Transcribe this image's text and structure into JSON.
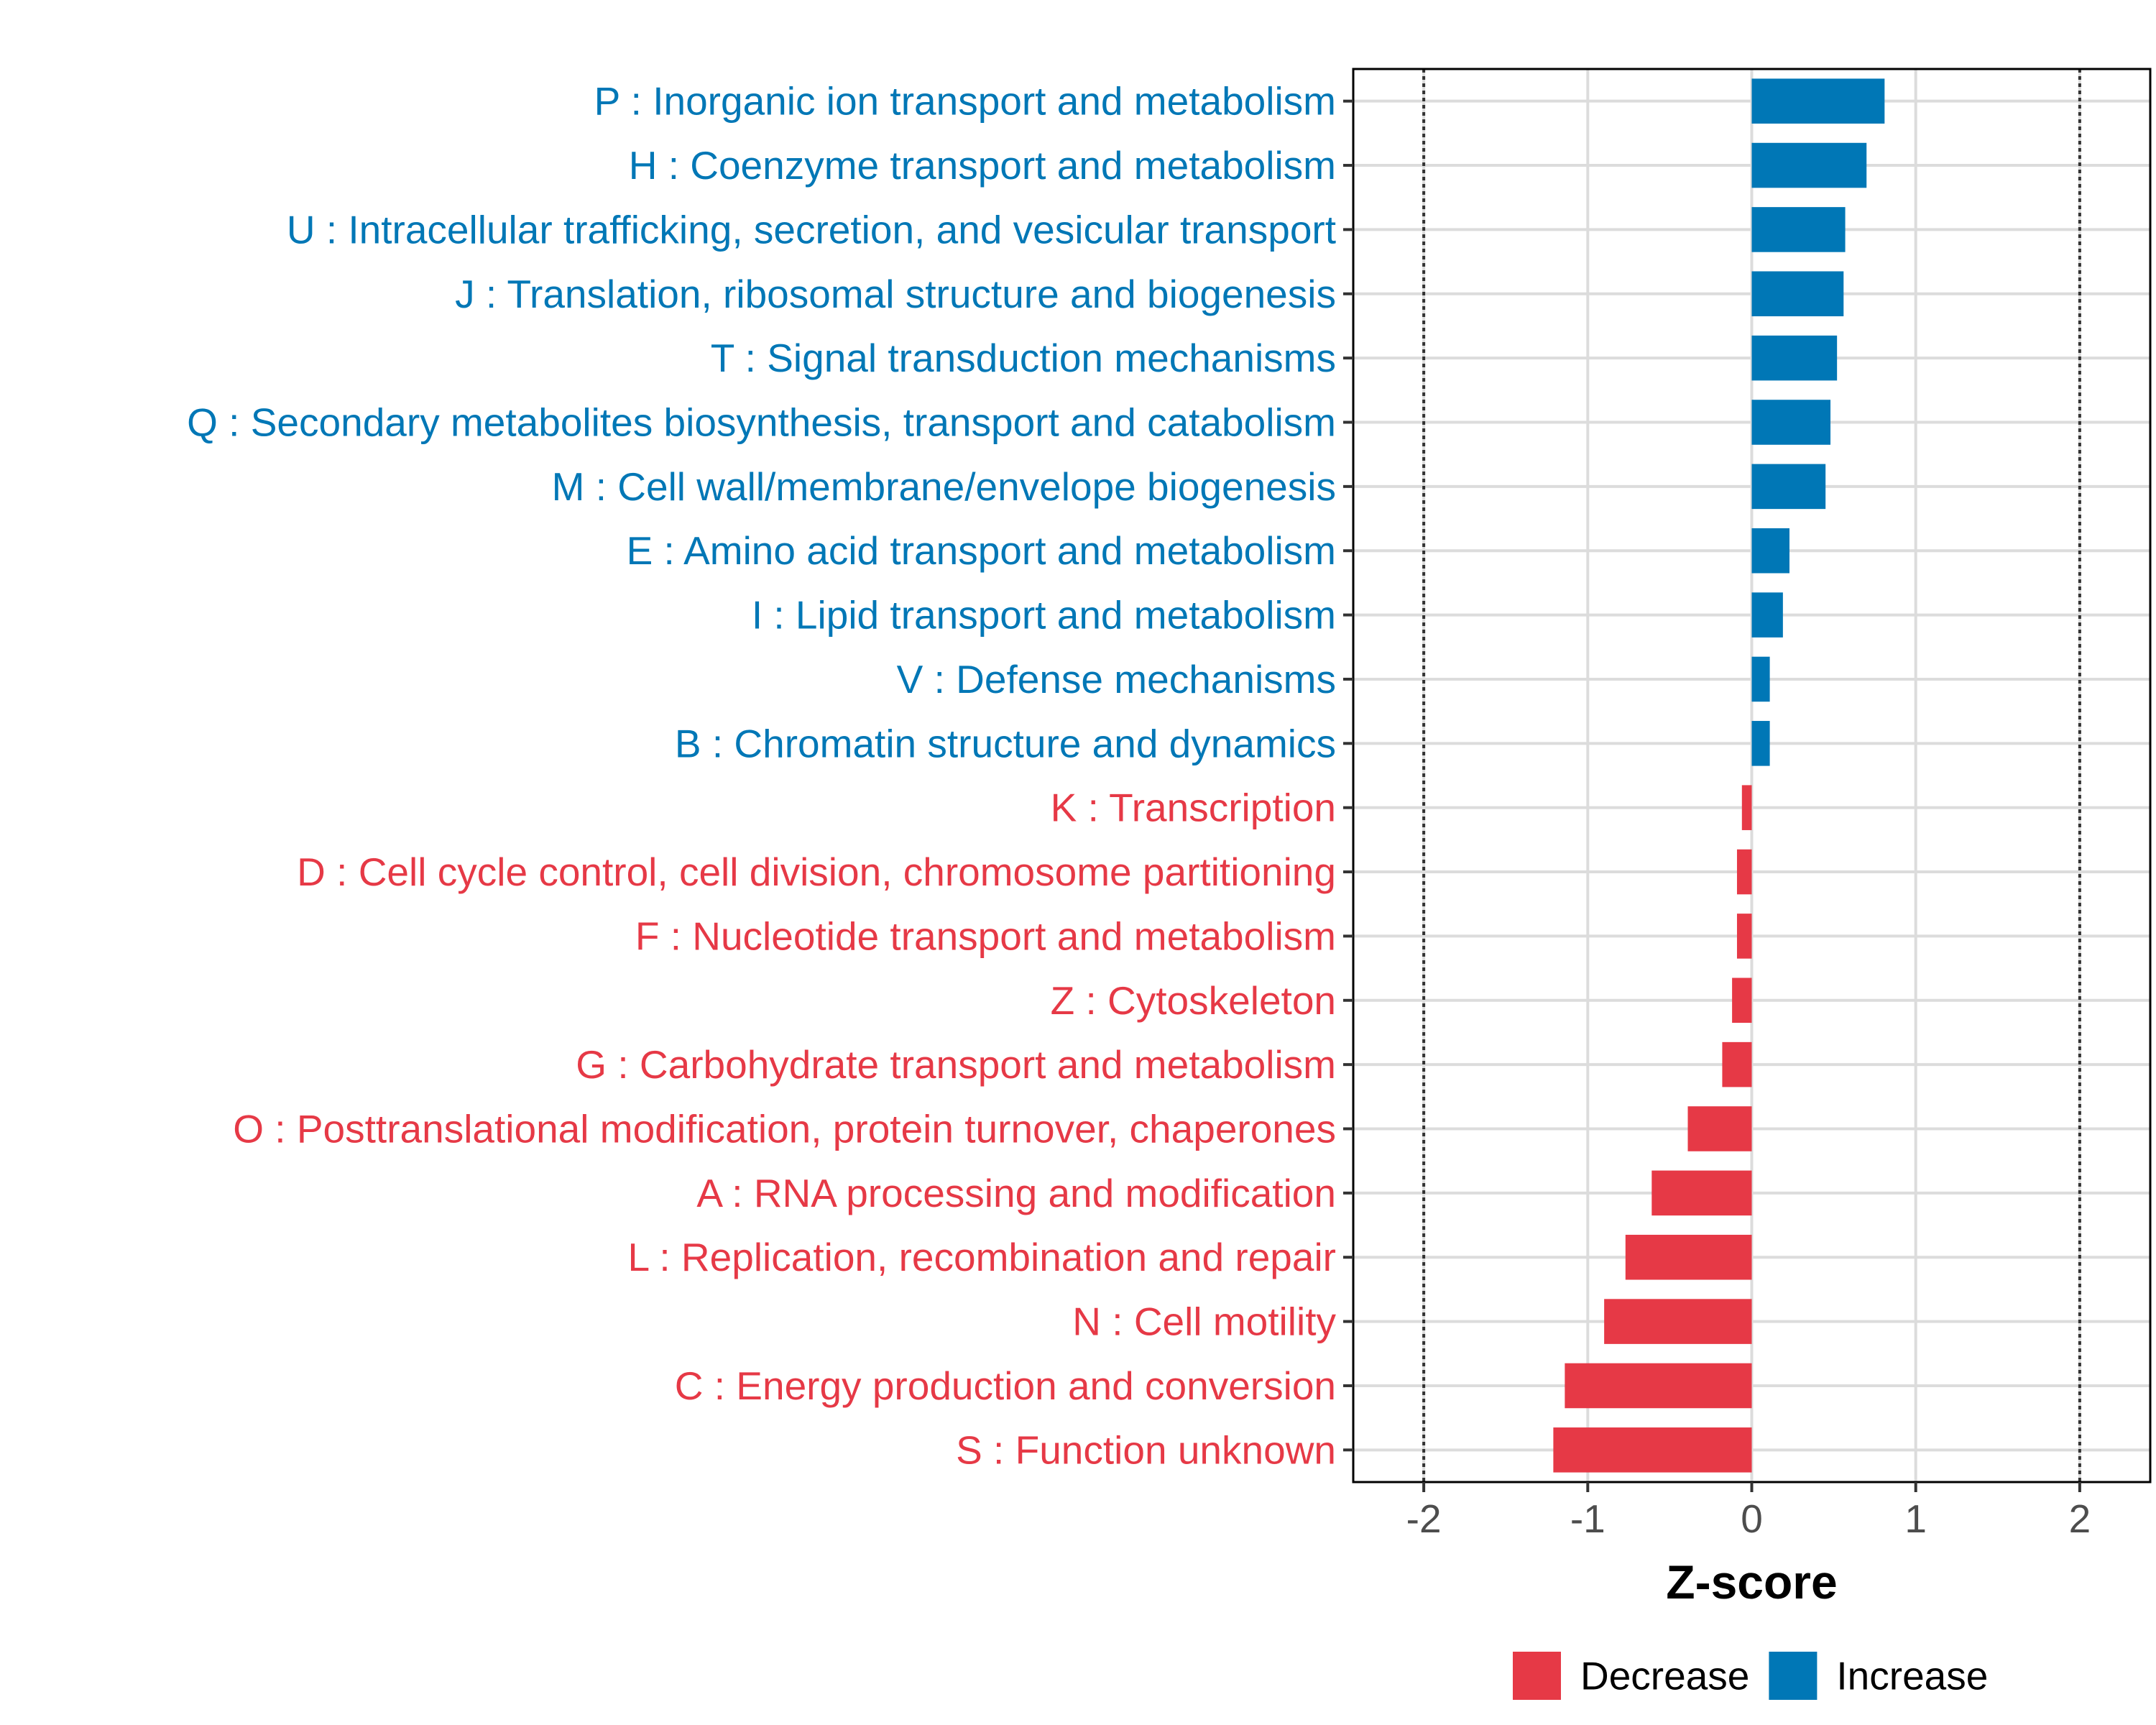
{
  "chart_data": {
    "type": "bar",
    "orientation": "horizontal",
    "xlabel": "Z-score",
    "ylabel": "",
    "xlim": [
      -2.43,
      2.43
    ],
    "xticks": [
      -2,
      -1,
      0,
      1,
      2
    ],
    "tick_labels": [
      "-2",
      "-1",
      "0",
      "1",
      "2"
    ],
    "reference_lines": [
      -2,
      2
    ],
    "grid": true,
    "legend_position": "bottom",
    "categories": [
      "P : Inorganic ion transport and metabolism",
      "H : Coenzyme transport and metabolism",
      "U : Intracellular trafficking, secretion, and vesicular transport",
      "J : Translation, ribosomal structure and biogenesis",
      "T : Signal transduction mechanisms",
      "Q : Secondary metabolites biosynthesis, transport and catabolism",
      "M : Cell wall/membrane/envelope biogenesis",
      "E : Amino acid transport and metabolism",
      "I : Lipid transport and metabolism",
      "V : Defense mechanisms",
      "B : Chromatin structure and dynamics",
      "K : Transcription",
      "D : Cell cycle control, cell division, chromosome partitioning",
      "F : Nucleotide transport and metabolism",
      "Z : Cytoskeleton",
      "G : Carbohydrate transport and metabolism",
      "O : Posttranslational modification, protein turnover, chaperones",
      "A : RNA processing and modification",
      "L : Replication, recombination and repair",
      "N : Cell motility",
      "C : Energy production and conversion",
      "S : Function unknown"
    ],
    "values": [
      0.81,
      0.7,
      0.57,
      0.56,
      0.52,
      0.48,
      0.45,
      0.23,
      0.19,
      0.11,
      0.11,
      -0.06,
      -0.09,
      -0.09,
      -0.12,
      -0.18,
      -0.39,
      -0.61,
      -0.77,
      -0.9,
      -1.14,
      -1.21
    ],
    "groups": [
      "Increase",
      "Increase",
      "Increase",
      "Increase",
      "Increase",
      "Increase",
      "Increase",
      "Increase",
      "Increase",
      "Increase",
      "Increase",
      "Decrease",
      "Decrease",
      "Decrease",
      "Decrease",
      "Decrease",
      "Decrease",
      "Decrease",
      "Decrease",
      "Decrease",
      "Decrease",
      "Decrease"
    ],
    "legend": [
      {
        "name": "Decrease",
        "color": "#E63946"
      },
      {
        "name": "Increase",
        "color": "#0077B6"
      }
    ]
  }
}
